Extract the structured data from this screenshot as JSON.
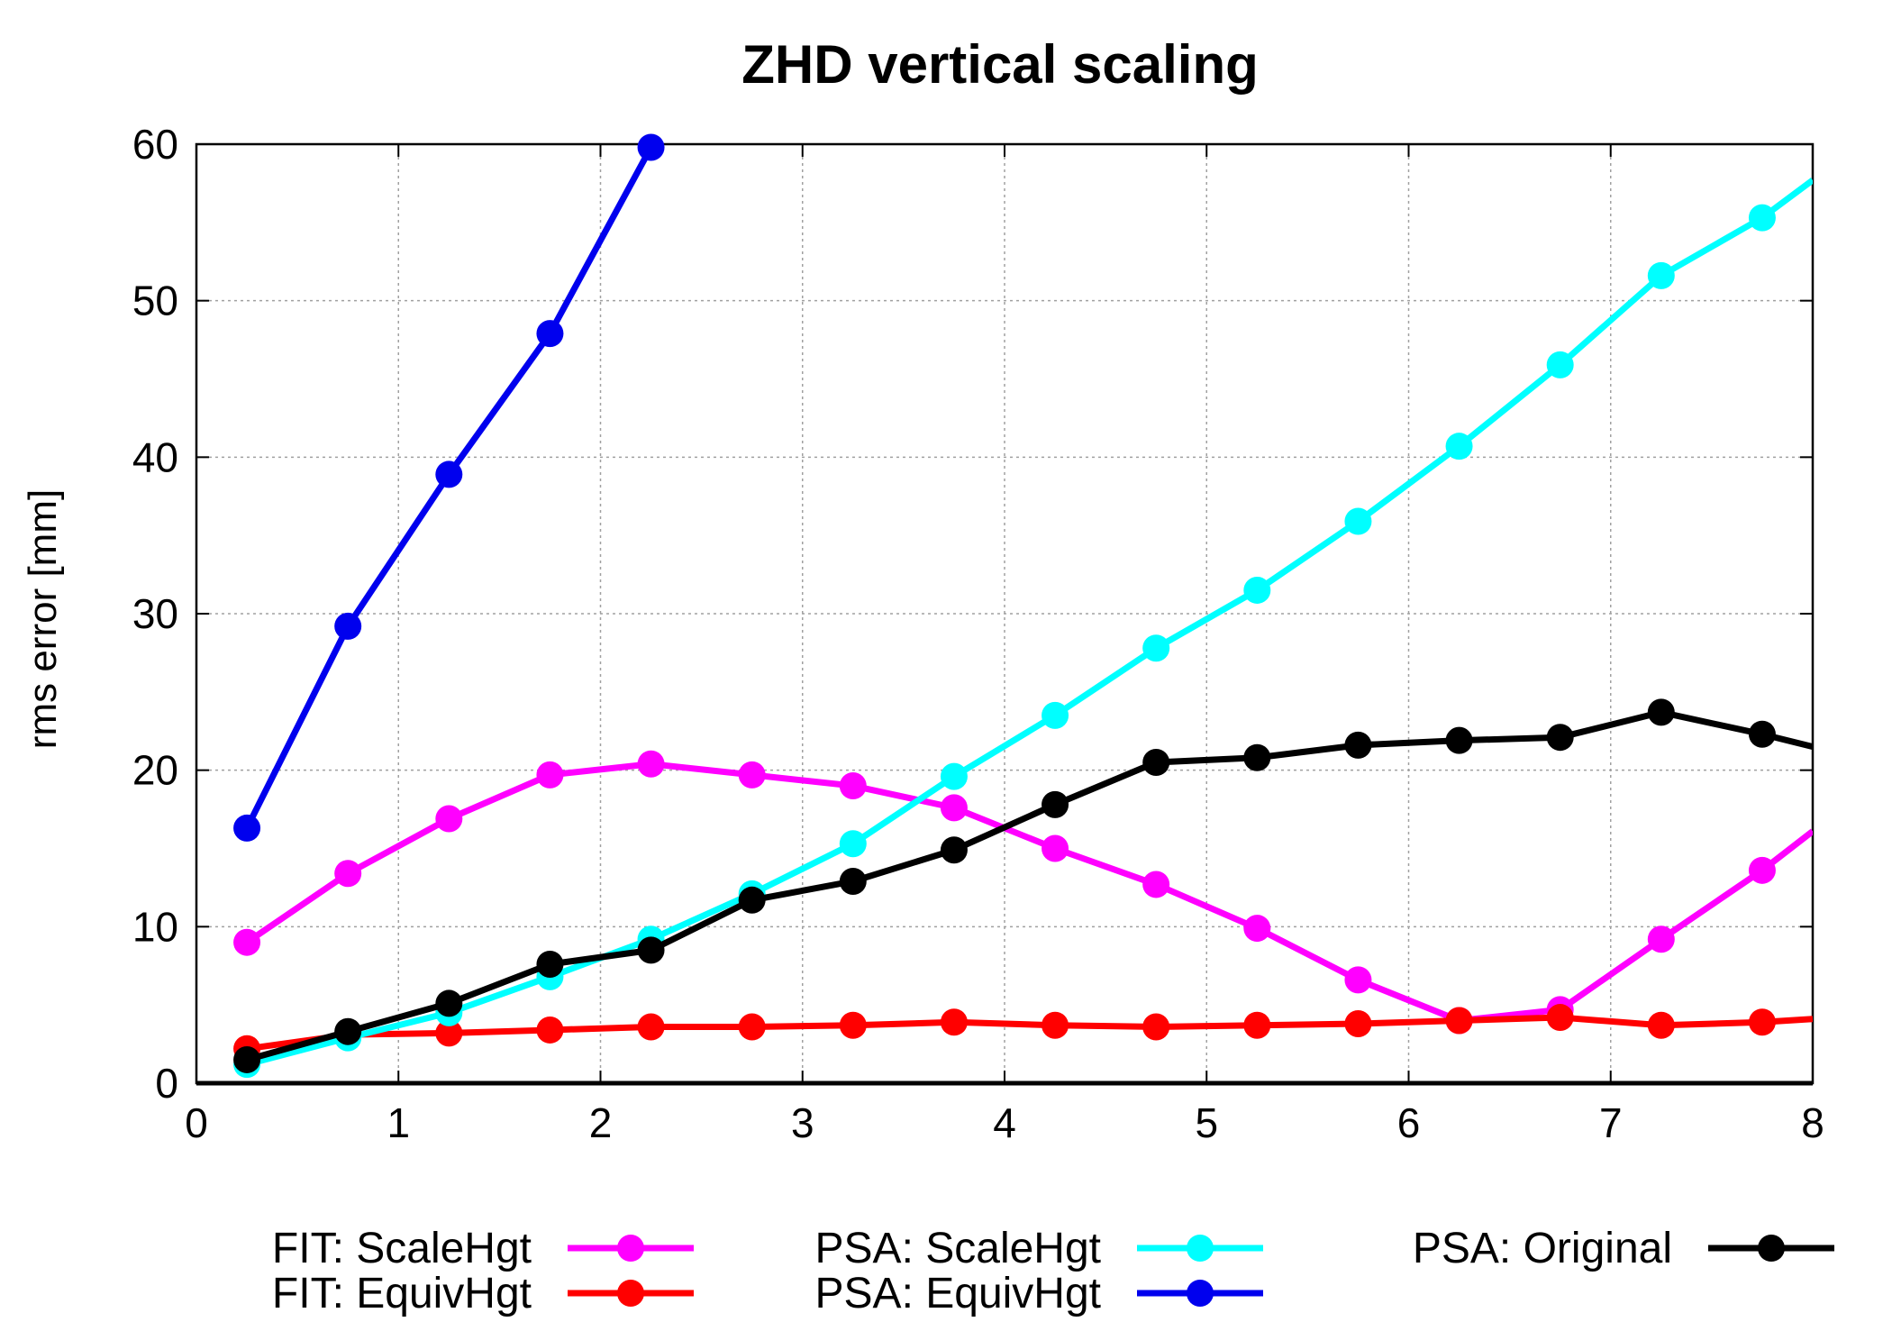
{
  "chart_data": {
    "type": "line",
    "title": "ZHD vertical scaling",
    "xlabel": "",
    "ylabel": "rms error [mm]",
    "xlim": [
      0,
      8
    ],
    "ylim": [
      0,
      60
    ],
    "xticks": [
      "0",
      "1",
      "2",
      "3",
      "4",
      "5",
      "6",
      "7",
      "8"
    ],
    "yticks": [
      "0",
      "10",
      "20",
      "30",
      "40",
      "50",
      "60"
    ],
    "grid": true,
    "legend_position": "bottom",
    "series": [
      {
        "name": "FIT: ScaleHgt",
        "color": "#ff00ff",
        "x": [
          0.25,
          0.75,
          1.25,
          1.75,
          2.25,
          2.75,
          3.25,
          3.75,
          4.25,
          4.75,
          5.25,
          5.75,
          6.25,
          6.75,
          7.25,
          7.75,
          8.0
        ],
        "y": [
          9.0,
          13.4,
          16.9,
          19.7,
          20.4,
          19.7,
          19.0,
          17.6,
          15.0,
          12.7,
          9.9,
          6.6,
          4.0,
          4.7,
          9.2,
          13.6,
          16.1
        ]
      },
      {
        "name": "FIT: EquivHgt",
        "color": "#ff0000",
        "x": [
          0.25,
          0.75,
          1.25,
          1.75,
          2.25,
          2.75,
          3.25,
          3.75,
          4.25,
          4.75,
          5.25,
          5.75,
          6.25,
          6.75,
          7.25,
          7.75,
          8.0
        ],
        "y": [
          2.2,
          3.1,
          3.2,
          3.4,
          3.6,
          3.6,
          3.7,
          3.9,
          3.7,
          3.6,
          3.7,
          3.8,
          4.0,
          4.2,
          3.7,
          3.9,
          4.1
        ]
      },
      {
        "name": "PSA: ScaleHgt",
        "color": "#00ffff",
        "x": [
          0.25,
          0.75,
          1.25,
          1.75,
          2.25,
          2.75,
          3.25,
          3.75,
          4.25,
          4.75,
          5.25,
          5.75,
          6.25,
          6.75,
          7.25,
          7.75,
          8.0
        ],
        "y": [
          1.2,
          2.9,
          4.5,
          6.8,
          9.2,
          12.1,
          15.3,
          19.6,
          23.5,
          27.8,
          31.5,
          35.9,
          40.7,
          45.9,
          51.6,
          55.3,
          57.7
        ]
      },
      {
        "name": "PSA: EquivHgt",
        "color": "#0000ee",
        "x": [
          0.25,
          0.75,
          1.25,
          1.75,
          2.25
        ],
        "y": [
          16.3,
          29.2,
          38.9,
          47.9,
          59.8
        ]
      },
      {
        "name": "PSA: Original",
        "color": "#000000",
        "x": [
          0.25,
          0.75,
          1.25,
          1.75,
          2.25,
          2.75,
          3.25,
          3.75,
          4.25,
          4.75,
          5.25,
          5.75,
          6.25,
          6.75,
          7.25,
          7.75,
          8.0
        ],
        "y": [
          1.5,
          3.3,
          5.1,
          7.6,
          8.5,
          11.7,
          12.9,
          14.9,
          17.8,
          20.5,
          20.8,
          21.6,
          21.9,
          22.1,
          23.7,
          22.3,
          21.5
        ]
      }
    ]
  }
}
